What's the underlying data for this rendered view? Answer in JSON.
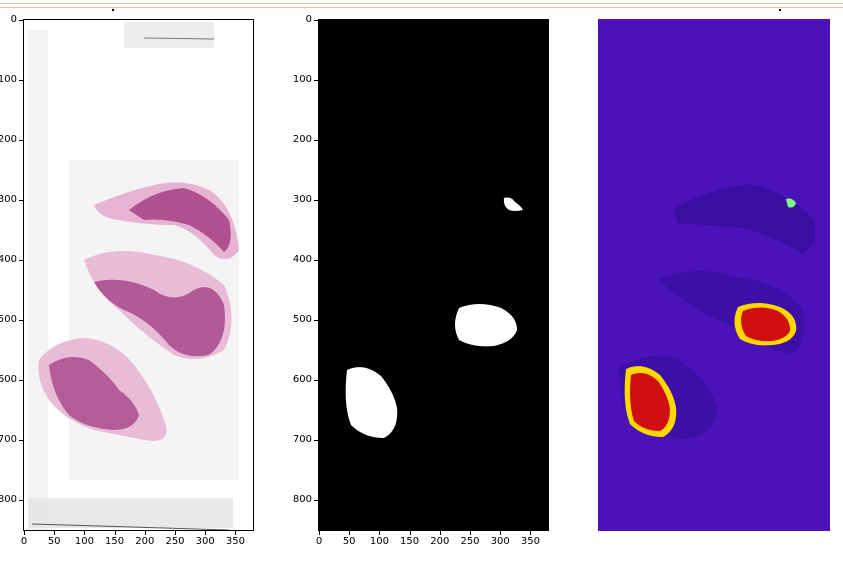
{
  "panels": [
    {
      "name": "he-slide",
      "y_ticks": [
        "0",
        "100",
        "200",
        "300",
        "400",
        "500",
        "600",
        "700",
        "800"
      ],
      "x_ticks": [
        "0",
        "50",
        "100",
        "150",
        "200",
        "250",
        "300",
        "350"
      ]
    },
    {
      "name": "binary-mask",
      "y_ticks": [
        "0",
        "100",
        "200",
        "300",
        "400",
        "500",
        "600",
        "700",
        "800"
      ],
      "x_ticks": [
        "0",
        "50",
        "100",
        "150",
        "200",
        "250",
        "300",
        "350"
      ]
    },
    {
      "name": "heatmap"
    }
  ],
  "colors": {
    "mask_background": "#000000",
    "mask_foreground": "#ffffff",
    "heatmap_background": "#4a12b8",
    "heatmap_hot": "#d01010",
    "tissue": "#b0508e"
  }
}
